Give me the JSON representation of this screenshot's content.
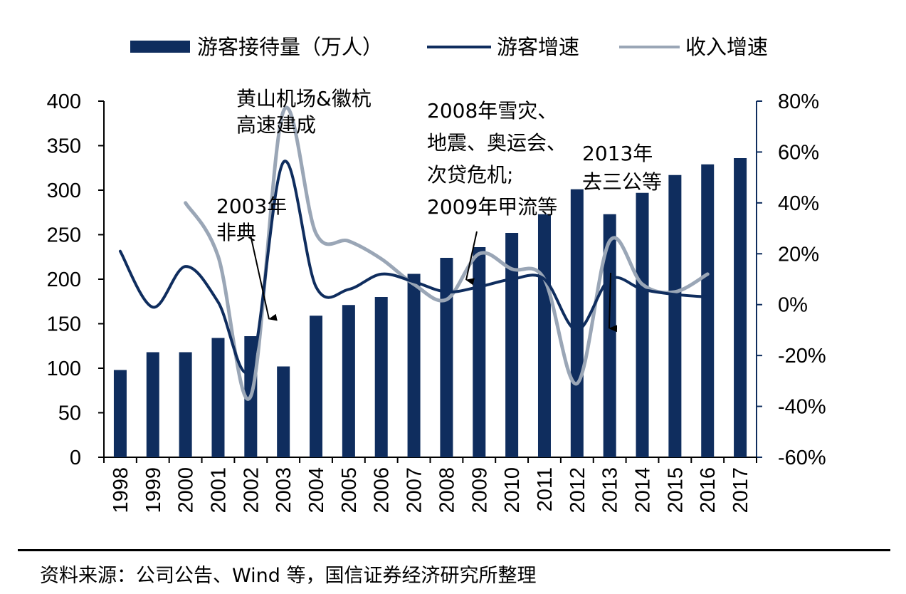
{
  "chart_data": {
    "type": "bar+line",
    "categories": [
      "1998",
      "1999",
      "2000",
      "2001",
      "2002",
      "2003",
      "2004",
      "2005",
      "2006",
      "2007",
      "2008",
      "2009",
      "2010",
      "2011",
      "2012",
      "2013",
      "2014",
      "2015",
      "2016",
      "2017"
    ],
    "series": [
      {
        "name": "游客接待量（万人）",
        "kind": "bar",
        "axis": "left",
        "values": [
          98,
          118,
          118,
          134,
          136,
          102,
          159,
          171,
          180,
          206,
          224,
          236,
          252,
          273,
          301,
          273,
          297,
          317,
          329,
          336
        ]
      },
      {
        "name": "游客增速",
        "kind": "line",
        "axis": "right",
        "values": [
          21,
          -1,
          15,
          1,
          -25,
          56,
          7,
          6,
          12,
          9,
          5,
          7,
          10,
          10,
          -10,
          10,
          6,
          4,
          3,
          null
        ]
      },
      {
        "name": "收入增速",
        "kind": "line",
        "axis": "right",
        "values": [
          null,
          null,
          40,
          19,
          -36,
          76,
          28,
          25,
          18,
          8,
          2,
          20,
          14,
          10,
          -31,
          25,
          8,
          5,
          12,
          null
        ]
      }
    ],
    "y_left": {
      "min": 0,
      "max": 400,
      "ticks": [
        "0",
        "50",
        "100",
        "150",
        "200",
        "250",
        "300",
        "350",
        "400"
      ]
    },
    "y_right": {
      "min": -60,
      "max": 80,
      "ticks": [
        "-60%",
        "-40%",
        "-20%",
        "0%",
        "20%",
        "40%",
        "60%",
        "80%"
      ]
    },
    "grid": false,
    "legend_position": "top",
    "colors": {
      "bar": "#0f2d5e",
      "tourist_line": "#0f2d5e",
      "revenue_line": "#9aa6b6",
      "axis": "#0f2d5e"
    },
    "annotations": [
      {
        "lines": [
          "黄山机场&徽杭",
          "高速建成"
        ]
      },
      {
        "lines": [
          "2003年",
          "非典"
        ]
      },
      {
        "lines": [
          "2008年雪灾、",
          "地震、奥运会、",
          "次贷危机;",
          "2009年甲流等"
        ]
      },
      {
        "lines": [
          "2013年",
          "去三公等"
        ]
      }
    ]
  },
  "source_text": "资料来源：公司公告、Wind 等，国信证券经济研究所整理"
}
